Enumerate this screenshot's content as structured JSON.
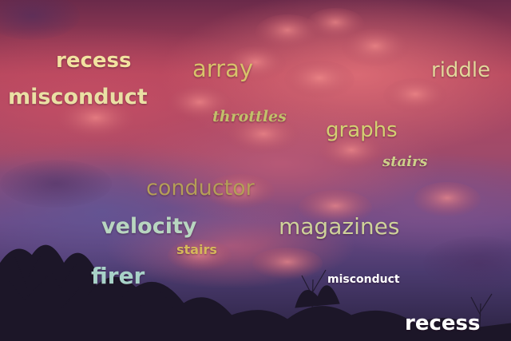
{
  "words": [
    {
      "text": "recess",
      "color": "#f2e2a0"
    },
    {
      "text": "array",
      "color": "#d8c26a"
    },
    {
      "text": "riddle",
      "color": "#e2d79a"
    },
    {
      "text": "misconduct",
      "color": "#eae0a4"
    },
    {
      "text": "throttles",
      "color": "#c2c06a"
    },
    {
      "text": "graphs",
      "color": "#d4d072"
    },
    {
      "text": "stairs",
      "color": "#cdd08a"
    },
    {
      "text": "conductor",
      "color": "#b59e58"
    },
    {
      "text": "velocity",
      "color": "#b8d6c0"
    },
    {
      "text": "magazines",
      "color": "#cfd29a"
    },
    {
      "text": "stairs",
      "color": "#d6b85a"
    },
    {
      "text": "firer",
      "color": "#a8d2c8"
    },
    {
      "text": "misconduct",
      "color": "#ffffff"
    },
    {
      "text": "recess",
      "color": "#ffffff"
    }
  ]
}
